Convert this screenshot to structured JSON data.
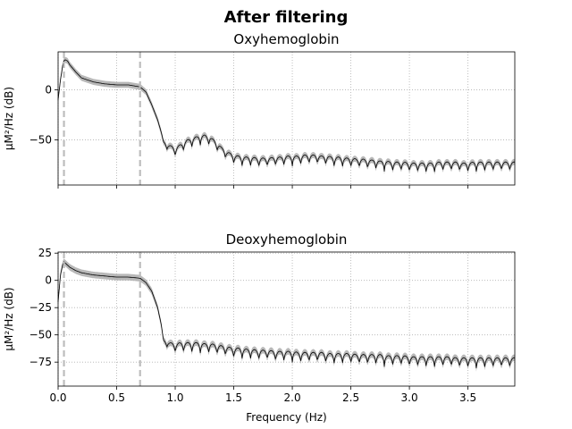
{
  "suptitle": "After filtering",
  "chart_data": [
    {
      "type": "line",
      "title": "Oxyhemoglobin",
      "xlabel": "",
      "ylabel": "µM²/Hz (dB)",
      "xlim": [
        0.0,
        3.9
      ],
      "ylim": [
        -95,
        38
      ],
      "xticks": [
        0.0,
        0.5,
        1.0,
        1.5,
        2.0,
        2.5,
        3.0,
        3.5
      ],
      "xticklabels": [
        "",
        "",
        "",
        "",
        "",
        "",
        "",
        ""
      ],
      "yticks": [
        0,
        -50
      ],
      "yticklabels": [
        "0",
        "−50"
      ],
      "grid": true,
      "vlines": [
        0.05,
        0.7
      ],
      "series": [
        {
          "color": "#000000",
          "band_color": "#b0b0b0",
          "band_halfwidth": 3,
          "x": [
            0.0,
            0.02,
            0.04,
            0.05,
            0.06,
            0.08,
            0.1,
            0.15,
            0.2,
            0.3,
            0.4,
            0.5,
            0.6,
            0.7,
            0.75,
            0.8,
            0.85,
            0.88,
            0.9,
            0.95,
            1.0,
            1.05,
            1.1,
            1.15,
            1.2,
            1.25,
            1.3,
            1.35,
            1.4,
            1.45,
            1.5,
            1.55,
            1.6,
            1.65,
            1.7,
            1.75,
            1.8,
            1.85,
            1.9,
            1.95,
            2.0,
            2.05,
            2.1,
            2.15,
            2.2,
            2.25,
            2.3,
            2.35,
            2.4,
            2.45,
            2.5,
            2.55,
            2.6,
            2.65,
            2.7,
            2.75,
            2.8,
            2.85,
            2.9,
            2.95,
            3.0,
            3.05,
            3.1,
            3.15,
            3.2,
            3.25,
            3.3,
            3.35,
            3.4,
            3.45,
            3.5,
            3.55,
            3.6,
            3.65,
            3.7,
            3.75,
            3.8,
            3.85,
            3.9
          ],
          "y": [
            -10,
            10,
            25,
            29,
            30,
            29,
            25,
            18,
            12,
            8,
            6,
            5,
            5,
            3,
            -2,
            -15,
            -30,
            -42,
            -52,
            -55,
            -58,
            -54,
            -50,
            -48,
            -46,
            -45,
            -47,
            -52,
            -58,
            -62,
            -65,
            -66,
            -67,
            -67,
            -68,
            -68,
            -68,
            -67,
            -67,
            -66,
            -66,
            -66,
            -65,
            -65,
            -65,
            -66,
            -66,
            -67,
            -67,
            -68,
            -68,
            -69,
            -69,
            -70,
            -70,
            -71,
            -71,
            -72,
            -72,
            -72,
            -73,
            -73,
            -73,
            -73,
            -73,
            -72,
            -72,
            -72,
            -72,
            -73,
            -73,
            -72,
            -72,
            -72,
            -72,
            -72,
            -72,
            -72,
            -72
          ],
          "dip_depth": [
            0,
            0,
            0,
            0,
            0,
            0,
            0,
            0,
            0,
            0,
            0,
            0,
            0,
            0,
            0,
            0,
            0,
            0,
            5,
            12,
            12,
            12,
            12,
            12,
            12,
            12,
            12,
            12,
            12,
            12,
            12,
            12,
            12,
            12,
            12,
            12,
            12,
            12,
            12,
            12,
            12,
            12,
            12,
            12,
            12,
            12,
            12,
            12,
            12,
            12,
            12,
            12,
            12,
            12,
            12,
            12,
            12,
            12,
            12,
            12,
            12,
            12,
            12,
            12,
            12,
            12,
            12,
            12,
            12,
            12,
            12,
            12,
            12,
            12,
            12,
            12,
            12,
            12,
            12
          ]
        }
      ]
    },
    {
      "type": "line",
      "title": "Deoxyhemoglobin",
      "xlabel": "Frequency (Hz)",
      "ylabel": "µM²/Hz (dB)",
      "xlim": [
        0.0,
        3.9
      ],
      "ylim": [
        -97,
        26
      ],
      "xticks": [
        0.0,
        0.5,
        1.0,
        1.5,
        2.0,
        2.5,
        3.0,
        3.5
      ],
      "xticklabels": [
        "0.0",
        "0.5",
        "1.0",
        "1.5",
        "2.0",
        "2.5",
        "3.0",
        "3.5"
      ],
      "yticks": [
        25,
        0,
        -25,
        -50,
        -75
      ],
      "yticklabels": [
        "25",
        "0",
        "−25",
        "−50",
        "−75"
      ],
      "grid": true,
      "vlines": [
        0.05,
        0.7
      ],
      "series": [
        {
          "color": "#000000",
          "band_color": "#b0b0b0",
          "band_halfwidth": 3,
          "x": [
            0.0,
            0.02,
            0.04,
            0.05,
            0.06,
            0.08,
            0.1,
            0.15,
            0.2,
            0.3,
            0.4,
            0.5,
            0.6,
            0.7,
            0.75,
            0.8,
            0.85,
            0.88,
            0.9,
            0.95,
            1.0,
            1.05,
            1.1,
            1.15,
            1.2,
            1.25,
            1.3,
            1.35,
            1.4,
            1.45,
            1.5,
            1.55,
            1.6,
            1.65,
            1.7,
            1.75,
            1.8,
            1.85,
            1.9,
            1.95,
            2.0,
            2.05,
            2.1,
            2.15,
            2.2,
            2.25,
            2.3,
            2.35,
            2.4,
            2.45,
            2.5,
            2.55,
            2.6,
            2.65,
            2.7,
            2.75,
            2.8,
            2.85,
            2.9,
            2.95,
            3.0,
            3.05,
            3.1,
            3.15,
            3.2,
            3.25,
            3.3,
            3.35,
            3.4,
            3.45,
            3.5,
            3.55,
            3.6,
            3.65,
            3.7,
            3.75,
            3.8,
            3.85,
            3.9
          ],
          "y": [
            -20,
            5,
            15,
            17,
            16,
            14,
            12,
            9,
            7,
            5,
            4,
            3,
            3,
            2,
            -2,
            -10,
            -25,
            -40,
            -55,
            -57,
            -58,
            -57,
            -57,
            -57,
            -57,
            -58,
            -58,
            -59,
            -60,
            -61,
            -62,
            -62,
            -63,
            -63,
            -64,
            -64,
            -64,
            -65,
            -65,
            -65,
            -65,
            -66,
            -66,
            -66,
            -66,
            -66,
            -67,
            -67,
            -67,
            -67,
            -67,
            -68,
            -68,
            -68,
            -68,
            -68,
            -69,
            -69,
            -69,
            -69,
            -70,
            -70,
            -70,
            -70,
            -70,
            -70,
            -70,
            -70,
            -71,
            -71,
            -71,
            -71,
            -71,
            -71,
            -71,
            -71,
            -71,
            -71,
            -71
          ],
          "dip_depth": [
            0,
            0,
            0,
            0,
            0,
            0,
            0,
            0,
            0,
            0,
            0,
            0,
            0,
            0,
            0,
            0,
            0,
            0,
            5,
            10,
            12,
            12,
            12,
            12,
            12,
            12,
            12,
            12,
            12,
            12,
            12,
            12,
            12,
            12,
            12,
            12,
            12,
            12,
            12,
            12,
            12,
            12,
            12,
            12,
            12,
            12,
            12,
            12,
            12,
            12,
            12,
            12,
            12,
            12,
            12,
            12,
            12,
            12,
            12,
            12,
            12,
            12,
            12,
            12,
            12,
            12,
            12,
            12,
            12,
            12,
            12,
            12,
            12,
            12,
            12,
            12,
            12,
            12,
            12
          ]
        }
      ]
    }
  ]
}
